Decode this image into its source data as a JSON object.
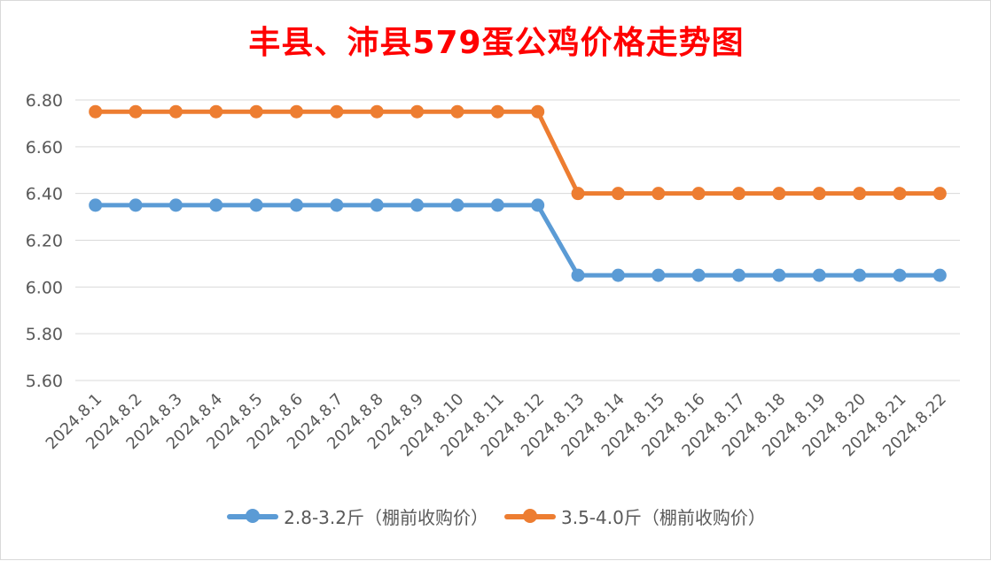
{
  "chart_data": {
    "type": "line",
    "title": "丰县、沛县579蛋公鸡价格走势图",
    "categories": [
      "2024.8.1",
      "2024.8.2",
      "2024.8.3",
      "2024.8.4",
      "2024.8.5",
      "2024.8.6",
      "2024.8.7",
      "2024.8.8",
      "2024.8.9",
      "2024.8.10",
      "2024.8.11",
      "2024.8.12",
      "2024.8.13",
      "2024.8.14",
      "2024.8.15",
      "2024.8.16",
      "2024.8.17",
      "2024.8.18",
      "2024.8.19",
      "2024.8.20",
      "2024.8.21",
      "2024.8.22"
    ],
    "ylim": [
      5.6,
      6.8
    ],
    "yticks": [
      "5.60",
      "5.80",
      "6.00",
      "6.20",
      "6.40",
      "6.60",
      "6.80"
    ],
    "grid": true,
    "legend_position": "bottom",
    "series": [
      {
        "name": "2.8-3.2斤（棚前收购价）",
        "color": "#5b9bd5",
        "values": [
          6.35,
          6.35,
          6.35,
          6.35,
          6.35,
          6.35,
          6.35,
          6.35,
          6.35,
          6.35,
          6.35,
          6.35,
          6.05,
          6.05,
          6.05,
          6.05,
          6.05,
          6.05,
          6.05,
          6.05,
          6.05,
          6.05
        ]
      },
      {
        "name": "3.5-4.0斤（棚前收购价）",
        "color": "#ed7d31",
        "values": [
          6.75,
          6.75,
          6.75,
          6.75,
          6.75,
          6.75,
          6.75,
          6.75,
          6.75,
          6.75,
          6.75,
          6.75,
          6.4,
          6.4,
          6.4,
          6.4,
          6.4,
          6.4,
          6.4,
          6.4,
          6.4,
          6.4
        ]
      }
    ]
  }
}
